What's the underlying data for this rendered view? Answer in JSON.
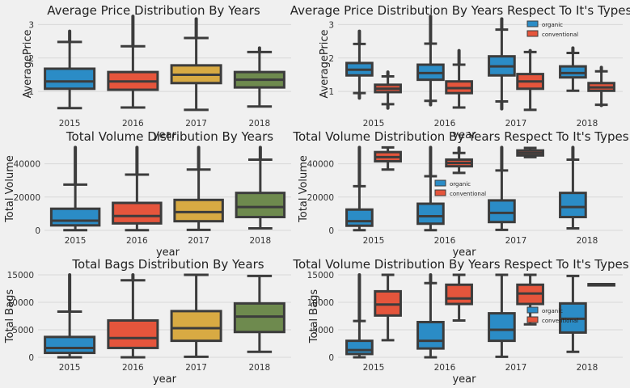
{
  "colors": {
    "background": "#f0f0f0",
    "grid": "#d8d8d8",
    "outline": "#3c3c3c",
    "box_2015": "#2b8cc6",
    "box_2016": "#e5553c",
    "box_2017": "#d8aa43",
    "box_2018": "#6e8a4e",
    "organic": "#2b8cc6",
    "conventional": "#e5553c"
  },
  "chart_data": [
    {
      "type": "box",
      "title": "Average Price Distribution By Years",
      "xlabel": "year",
      "ylabel": "AveragePrice",
      "categories": [
        "2015",
        "2016",
        "2017",
        "2018"
      ],
      "ylim": [
        0.35,
        3.3
      ],
      "yticks": [
        1,
        2,
        3
      ],
      "grouped": false,
      "boxes": [
        {
          "category": "2015",
          "whisker_low": 0.5,
          "q1": 1.08,
          "median": 1.3,
          "q3": 1.68,
          "whisker_high": 2.48,
          "flier_high": 2.8
        },
        {
          "category": "2016",
          "whisker_low": 0.52,
          "q1": 1.05,
          "median": 1.3,
          "q3": 1.58,
          "whisker_high": 2.35,
          "flier_high": 3.25
        },
        {
          "category": "2017",
          "whisker_low": 0.45,
          "q1": 1.25,
          "median": 1.5,
          "q3": 1.78,
          "whisker_high": 2.6,
          "flier_high": 3.17
        },
        {
          "category": "2018",
          "whisker_low": 0.55,
          "q1": 1.12,
          "median": 1.35,
          "q3": 1.58,
          "whisker_high": 2.18,
          "flier_high": 2.3
        }
      ]
    },
    {
      "type": "box",
      "title": "Average Price Distribution By Years Respect To It's Types",
      "xlabel": "year",
      "ylabel": "AveragePrice",
      "categories": [
        "2015",
        "2016",
        "2017",
        "2018"
      ],
      "ylim": [
        0.35,
        3.3
      ],
      "yticks": [
        1,
        2,
        3
      ],
      "grouped": true,
      "legend": {
        "entries": [
          "organic",
          "conventional"
        ],
        "position": "top-right"
      },
      "boxes": [
        {
          "category": "2015",
          "series": "organic",
          "whisker_low": 0.95,
          "q1": 1.48,
          "median": 1.65,
          "q3": 1.85,
          "whisker_high": 2.42,
          "flier_high": 2.8,
          "flier_low": 0.8
        },
        {
          "category": "2015",
          "series": "conventional",
          "whisker_low": 0.62,
          "q1": 0.98,
          "median": 1.08,
          "q3": 1.2,
          "whisker_high": 1.45,
          "flier_high": 1.58,
          "flier_low": 0.5
        },
        {
          "category": "2016",
          "series": "organic",
          "whisker_low": 0.72,
          "q1": 1.35,
          "median": 1.55,
          "q3": 1.8,
          "whisker_high": 2.43,
          "flier_high": 3.25,
          "flier_low": 0.6
        },
        {
          "category": "2016",
          "series": "conventional",
          "whisker_low": 0.52,
          "q1": 0.95,
          "median": 1.1,
          "q3": 1.3,
          "whisker_high": 1.8,
          "flier_high": 2.22
        },
        {
          "category": "2017",
          "series": "organic",
          "whisker_low": 0.7,
          "q1": 1.48,
          "median": 1.75,
          "q3": 2.05,
          "whisker_high": 2.85,
          "flier_high": 3.17,
          "flier_low": 0.48
        },
        {
          "category": "2017",
          "series": "conventional",
          "whisker_low": 0.45,
          "q1": 1.08,
          "median": 1.3,
          "q3": 1.52,
          "whisker_high": 2.18,
          "flier_high": 2.22
        },
        {
          "category": "2018",
          "series": "organic",
          "whisker_low": 1.02,
          "q1": 1.42,
          "median": 1.55,
          "q3": 1.75,
          "whisker_high": 2.15,
          "flier_high": 2.3
        },
        {
          "category": "2018",
          "series": "conventional",
          "whisker_low": 0.6,
          "q1": 1.02,
          "median": 1.12,
          "q3": 1.25,
          "whisker_high": 1.6,
          "flier_high": 1.72,
          "flier_low": 0.58
        }
      ]
    },
    {
      "type": "box",
      "title": "Total Volume Distribution By Years",
      "xlabel": "year",
      "ylabel": "Total Volume",
      "categories": [
        "2015",
        "2016",
        "2017",
        "2018"
      ],
      "ylim": [
        0,
        50000
      ],
      "yticks": [
        0,
        20000,
        40000
      ],
      "grouped": false,
      "boxes": [
        {
          "category": "2015",
          "whisker_low": 100,
          "q1": 3000,
          "median": 5800,
          "q3": 13000,
          "whisker_high": 27500,
          "flier_high": 49800
        },
        {
          "category": "2016",
          "whisker_low": 100,
          "q1": 4200,
          "median": 8600,
          "q3": 16500,
          "whisker_high": 33500,
          "flier_high": 49800
        },
        {
          "category": "2017",
          "whisker_low": 300,
          "q1": 5500,
          "median": 11000,
          "q3": 18300,
          "whisker_high": 36500,
          "flier_high": 49800
        },
        {
          "category": "2018",
          "whisker_low": 1200,
          "q1": 8000,
          "median": 14000,
          "q3": 22500,
          "whisker_high": 42500,
          "flier_high": 49800
        }
      ]
    },
    {
      "type": "box",
      "title": "Total Volume Distribution By Years Respect To It's Types",
      "xlabel": "year",
      "ylabel": "Total Volume",
      "categories": [
        "2015",
        "2016",
        "2017",
        "2018"
      ],
      "ylim": [
        0,
        50000
      ],
      "yticks": [
        0,
        20000,
        40000
      ],
      "grouped": true,
      "legend": {
        "entries": [
          "organic",
          "conventional"
        ],
        "position": "center"
      },
      "boxes": [
        {
          "category": "2015",
          "series": "organic",
          "whisker_low": 100,
          "q1": 2800,
          "median": 5500,
          "q3": 12500,
          "whisker_high": 26500,
          "flier_high": 49800
        },
        {
          "category": "2015",
          "series": "conventional",
          "whisker_low": 36500,
          "q1": 41500,
          "median": 44000,
          "q3": 47000,
          "whisker_high": 49800
        },
        {
          "category": "2016",
          "series": "organic",
          "whisker_low": 100,
          "q1": 4000,
          "median": 8500,
          "q3": 16000,
          "whisker_high": 32500,
          "flier_high": 49800
        },
        {
          "category": "2016",
          "series": "conventional",
          "whisker_low": 34500,
          "q1": 38500,
          "median": 40500,
          "q3": 42500,
          "whisker_high": 46500,
          "flier_high": 49500
        },
        {
          "category": "2017",
          "series": "organic",
          "whisker_low": 300,
          "q1": 5000,
          "median": 10500,
          "q3": 18000,
          "whisker_high": 36000,
          "flier_high": 49800
        },
        {
          "category": "2017",
          "series": "conventional",
          "whisker_low": 44000,
          "q1": 45000,
          "median": 46500,
          "q3": 48000,
          "whisker_high": 49500
        },
        {
          "category": "2018",
          "series": "organic",
          "whisker_low": 1200,
          "q1": 8000,
          "median": 14000,
          "q3": 22500,
          "whisker_high": 42500,
          "flier_high": 49800
        }
      ]
    },
    {
      "type": "box",
      "title": "Total Bags Distribution By Years",
      "xlabel": "year",
      "ylabel": "Total Bags",
      "categories": [
        "2015",
        "2016",
        "2017",
        "2018"
      ],
      "ylim": [
        0,
        15000
      ],
      "yticks": [
        0,
        5000,
        10000,
        15000
      ],
      "grouped": false,
      "boxes": [
        {
          "category": "2015",
          "whisker_low": 0,
          "q1": 800,
          "median": 1700,
          "q3": 3700,
          "whisker_high": 8300,
          "flier_high": 15000
        },
        {
          "category": "2016",
          "whisker_low": 0,
          "q1": 1700,
          "median": 3500,
          "q3": 6700,
          "whisker_high": 14000,
          "flier_high": 15000
        },
        {
          "category": "2017",
          "whisker_low": 100,
          "q1": 3000,
          "median": 5300,
          "q3": 8400,
          "whisker_high": 15000
        },
        {
          "category": "2018",
          "whisker_low": 1000,
          "q1": 4600,
          "median": 7400,
          "q3": 9800,
          "whisker_high": 14800
        }
      ]
    },
    {
      "type": "box",
      "title": "Total Volume Distribution By Years Respect To It's Types",
      "xlabel": "year",
      "ylabel": "Total Bags",
      "categories": [
        "2015",
        "2016",
        "2017",
        "2018"
      ],
      "ylim": [
        0,
        15000
      ],
      "yticks": [
        0,
        5000,
        10000,
        15000
      ],
      "grouped": true,
      "legend": {
        "entries": [
          "organic",
          "conventional"
        ],
        "position": "center-right"
      },
      "boxes": [
        {
          "category": "2015",
          "series": "organic",
          "whisker_low": 0,
          "q1": 600,
          "median": 1300,
          "q3": 3000,
          "whisker_high": 6600,
          "flier_high": 15000
        },
        {
          "category": "2015",
          "series": "conventional",
          "whisker_low": 3100,
          "q1": 7600,
          "median": 9600,
          "q3": 12000,
          "whisker_high": 15000
        },
        {
          "category": "2016",
          "series": "organic",
          "whisker_low": 0,
          "q1": 1600,
          "median": 3000,
          "q3": 6400,
          "whisker_high": 13500,
          "flier_high": 15000
        },
        {
          "category": "2016",
          "series": "conventional",
          "whisker_low": 6700,
          "q1": 9700,
          "median": 10700,
          "q3": 13200,
          "whisker_high": 15000
        },
        {
          "category": "2017",
          "series": "organic",
          "whisker_low": 100,
          "q1": 3000,
          "median": 5000,
          "q3": 8000,
          "whisker_high": 15000
        },
        {
          "category": "2017",
          "series": "conventional",
          "whisker_low": 6000,
          "q1": 9700,
          "median": 11600,
          "q3": 13200,
          "whisker_high": 15000
        },
        {
          "category": "2018",
          "series": "organic",
          "whisker_low": 1000,
          "q1": 4500,
          "median": 7000,
          "q3": 9800,
          "whisker_high": 14800
        },
        {
          "category": "2018",
          "series": "conventional",
          "whisker_low": 13300,
          "q1": 13300,
          "median": 13300,
          "q3": 13300,
          "whisker_high": 13300
        }
      ]
    }
  ]
}
